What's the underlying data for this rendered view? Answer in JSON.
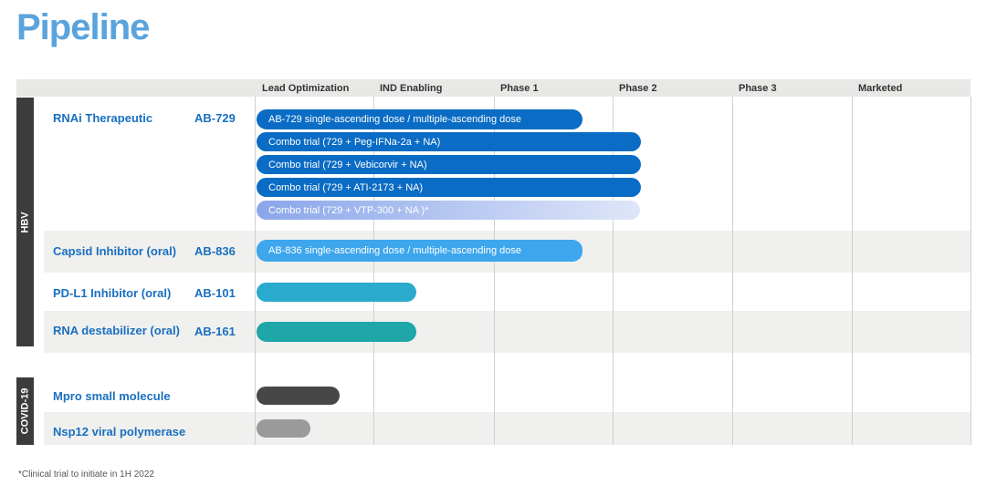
{
  "title": "Pipeline",
  "phases": [
    "Lead Optimization",
    "IND Enabling",
    "Phase 1",
    "Phase 2",
    "Phase 3",
    "Marketed"
  ],
  "groups": {
    "hbv": "HBV",
    "covid": "COVID-19"
  },
  "programs": [
    {
      "name": "RNAi Therapeutic",
      "code": "AB-729"
    },
    {
      "name": "Capsid Inhibitor (oral)",
      "code": "AB-836"
    },
    {
      "name": "PD-L1 Inhibitor (oral)",
      "code": "AB-101"
    },
    {
      "name": "RNA destabilizer (oral)",
      "code": "AB-161"
    },
    {
      "name": "Mpro small molecule",
      "code": ""
    },
    {
      "name": "Nsp12 viral polymerase",
      "code": ""
    }
  ],
  "bars": [
    {
      "label": "AB-729  single-ascending dose / multiple-ascending dose",
      "color": "#0a6cc4"
    },
    {
      "label": "Combo trial (729 + Peg-IFNa-2a + NA)",
      "color": "#0a6cc4"
    },
    {
      "label": "Combo trial (729 + Vebicorvir + NA)",
      "color": "#0a6cc4"
    },
    {
      "label": "Combo trial (729 + ATI-2173 + NA)",
      "color": "#0a6cc4"
    },
    {
      "label": "Combo trial (729 + VTP-300 + NA )*",
      "color": "#a9bff0"
    },
    {
      "label": "AB-836 single-ascending dose / multiple-ascending dose",
      "color": "#3ea6ec"
    },
    {
      "label": "",
      "color": "#2aaacd"
    },
    {
      "label": "",
      "color": "#1ea6a8"
    },
    {
      "label": "",
      "color": "#474747"
    },
    {
      "label": "",
      "color": "#9a9a9a"
    }
  ],
  "footnote": "*Clinical trial to initiate in 1H 2022"
}
